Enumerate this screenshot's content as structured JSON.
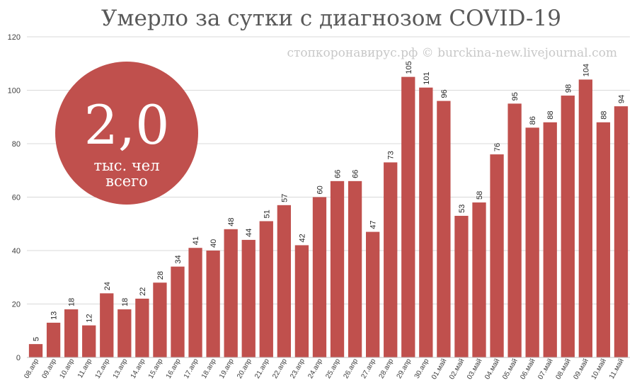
{
  "chart_data": {
    "type": "bar",
    "title": "Умерло за сутки с диагнозом COVID-19",
    "watermark": "стопкоронавирус.рф © burckina-new.livejournal.com",
    "ylim": [
      0,
      120
    ],
    "yticks": [
      "0",
      "20",
      "40",
      "60",
      "80",
      "100",
      "120"
    ],
    "grid": true,
    "bar_color": "#c0504d",
    "categories": [
      "08.апр",
      "09.апр",
      "10.апр",
      "11.апр",
      "12.апр",
      "13.апр",
      "14.апр",
      "15.апр",
      "16.апр",
      "17.апр",
      "18.апр",
      "19.апр",
      "20.апр",
      "21.апр",
      "22.апр",
      "23.апр",
      "24.апр",
      "25.апр",
      "26.апр",
      "27.апр",
      "28.апр",
      "29.апр",
      "30.апр",
      "01.май",
      "02.май",
      "03.май",
      "04.май",
      "05.май",
      "06.май",
      "07.май",
      "08.май",
      "09.май",
      "10.май",
      "11.май"
    ],
    "values": [
      5,
      13,
      18,
      12,
      24,
      18,
      22,
      28,
      34,
      41,
      40,
      48,
      44,
      51,
      57,
      42,
      60,
      66,
      66,
      47,
      73,
      105,
      101,
      96,
      53,
      58,
      76,
      95,
      86,
      88,
      98,
      104,
      88,
      94
    ],
    "annotation": {
      "value": "2,0",
      "line1": "тыс. чел",
      "line2": "всего",
      "color": "#c0504d"
    }
  }
}
